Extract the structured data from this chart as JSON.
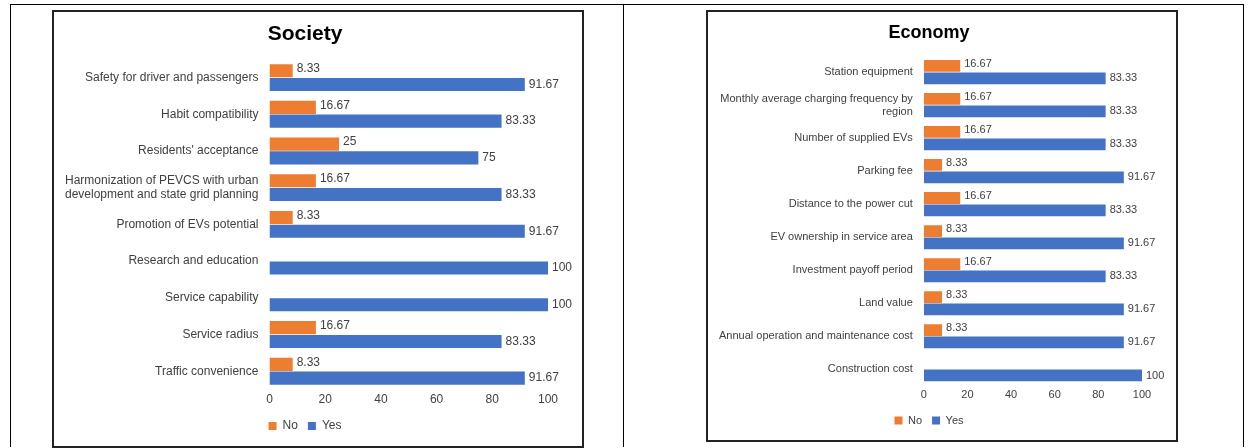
{
  "chart_data": [
    {
      "type": "bar",
      "orientation": "horizontal",
      "title": "Society",
      "categories": [
        "Safety for driver and passengers",
        "Habit compatibility",
        "Residents' acceptance",
        "Harmonization of PEVCS with urban development and state grid planning",
        "Promotion of EVs potential",
        "Research and education",
        "Service capability",
        "Service radius",
        "Traffic convenience"
      ],
      "series": [
        {
          "name": "No",
          "color": "#ed7d31",
          "values": [
            8.33,
            16.67,
            25,
            16.67,
            8.33,
            null,
            null,
            16.67,
            8.33
          ]
        },
        {
          "name": "Yes",
          "color": "#4472c4",
          "values": [
            91.67,
            83.33,
            75,
            83.33,
            91.67,
            100,
            100,
            83.33,
            91.67
          ]
        }
      ],
      "xlim": [
        0,
        100
      ],
      "xticks": [
        0,
        20,
        40,
        60,
        80,
        100
      ],
      "grid": false,
      "legend": "bottom",
      "data_labels": true
    },
    {
      "type": "bar",
      "orientation": "horizontal",
      "title": "Economy",
      "categories": [
        "Station equipment",
        "Monthly average charging frequency by region",
        "Number of supplied EVs",
        "Parking fee",
        "Distance to the power cut",
        "EV ownership in service area",
        "Investment payoff period",
        "Land value",
        "Annual operation and maintenance cost",
        "Construction cost"
      ],
      "series": [
        {
          "name": "No",
          "color": "#ed7d31",
          "values": [
            16.67,
            16.67,
            16.67,
            8.33,
            16.67,
            8.33,
            16.67,
            8.33,
            8.33,
            null
          ]
        },
        {
          "name": "Yes",
          "color": "#4472c4",
          "values": [
            83.33,
            83.33,
            83.33,
            91.67,
            83.33,
            91.67,
            83.33,
            91.67,
            91.67,
            100
          ]
        }
      ],
      "xlim": [
        0,
        100
      ],
      "xticks": [
        0,
        20,
        40,
        60,
        80,
        100
      ],
      "grid": false,
      "legend": "bottom",
      "data_labels": true
    }
  ]
}
